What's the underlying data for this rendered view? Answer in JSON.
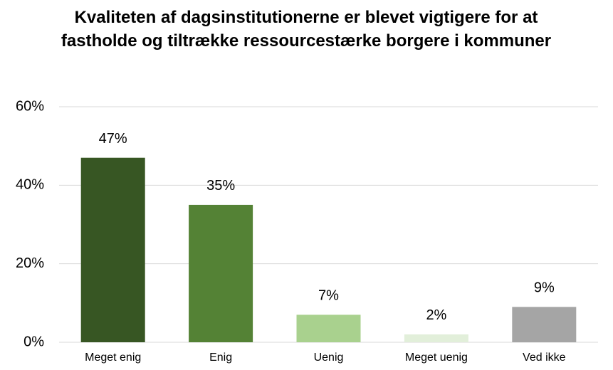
{
  "chart_data": {
    "type": "bar",
    "title": "Kvaliteten af dagsinstitutionerne er blevet vigtigere for at fastholde og tiltrække ressourcestærke borgere i kommuner",
    "categories": [
      "Meget enig",
      "Enig",
      "Uenig",
      "Meget uenig",
      "Ved ikke"
    ],
    "values": [
      47,
      35,
      7,
      2,
      9
    ],
    "value_labels": [
      "47%",
      "35%",
      "7%",
      "2%",
      "9%"
    ],
    "colors": [
      "#375623",
      "#548235",
      "#a9d18e",
      "#e2efda",
      "#a5a5a5"
    ],
    "ylim": [
      0,
      60
    ],
    "yticks": [
      {
        "value": 0,
        "label": "0%"
      },
      {
        "value": 20,
        "label": "20%"
      },
      {
        "value": 40,
        "label": "40%"
      },
      {
        "value": 60,
        "label": "60%"
      }
    ],
    "grid": true
  }
}
